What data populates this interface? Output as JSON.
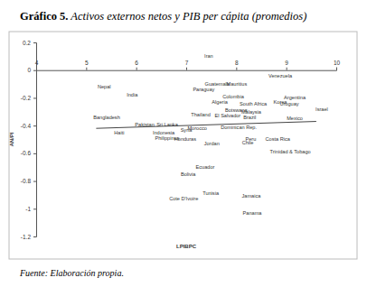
{
  "chart_data": {
    "type": "scatter",
    "title": "Gráfico 5. Activos externos netos y PIB per cápita (promedios)",
    "note": "Fuente: Elaboración propia.",
    "x_label": "LPIBPC",
    "y_label": "AN/PI",
    "xlim": [
      4,
      10
    ],
    "ylim": [
      -1.2,
      0.2
    ],
    "xticks": [
      4,
      5,
      6,
      7,
      8,
      9,
      10
    ],
    "yticks": [
      0.2,
      0,
      -0.2,
      -0.4,
      -0.6,
      -0.8,
      -1,
      -1.2
    ],
    "series": [
      {
        "type": "scatter",
        "color": "#333333",
        "labels": [
          "Iran",
          "Venezuela",
          "Nepal",
          "Guatemala",
          "Mauritius",
          "Paraguay",
          "India",
          "Colombia",
          "Argentina",
          "Algeria",
          "Korea",
          "South Africa",
          "Uruguay",
          "Israel",
          "Thailand",
          "Botswana",
          "Malaysia",
          "El Salvador",
          "Brazil",
          "Mexico",
          "Bangladesh",
          "Pakistan",
          "Sri Lanka",
          "Dominican Rep.",
          "Morocco",
          "Syria",
          "Haiti",
          "Indonesia",
          "Philippines",
          "Honduras",
          "Jordan",
          "Peru",
          "Chile",
          "Costa Rica",
          "Trinidad & Tobago",
          "Ecuador",
          "Bolivia",
          "Tunisia",
          "Jamaica",
          "Cote D'Ivoire",
          "Panama"
        ],
        "x": [
          7.45,
          8.88,
          5.36,
          7.62,
          8.01,
          7.35,
          5.92,
          7.94,
          9.17,
          7.67,
          8.88,
          8.34,
          9.06,
          9.71,
          7.29,
          8.0,
          8.3,
          7.83,
          8.27,
          9.17,
          5.41,
          6.17,
          6.62,
          8.05,
          7.22,
          7.0,
          5.66,
          6.55,
          6.62,
          6.98,
          7.51,
          8.29,
          8.23,
          8.83,
          9.08,
          7.38,
          7.04,
          7.49,
          8.3,
          6.95,
          8.32
        ],
        "values": [
          0.1,
          -0.04,
          -0.12,
          -0.1,
          -0.1,
          -0.14,
          -0.18,
          -0.19,
          -0.2,
          -0.23,
          -0.23,
          -0.24,
          -0.24,
          -0.28,
          -0.32,
          -0.29,
          -0.3,
          -0.33,
          -0.34,
          -0.35,
          -0.34,
          -0.39,
          -0.39,
          -0.41,
          -0.42,
          -0.43,
          -0.45,
          -0.45,
          -0.49,
          -0.5,
          -0.53,
          -0.5,
          -0.52,
          -0.5,
          -0.59,
          -0.7,
          -0.75,
          -0.89,
          -0.91,
          -0.93,
          -1.03
        ]
      },
      {
        "type": "line",
        "color": "#444444",
        "x": [
          5.2,
          9.6
        ],
        "values": [
          -0.42,
          -0.37
        ]
      }
    ]
  }
}
